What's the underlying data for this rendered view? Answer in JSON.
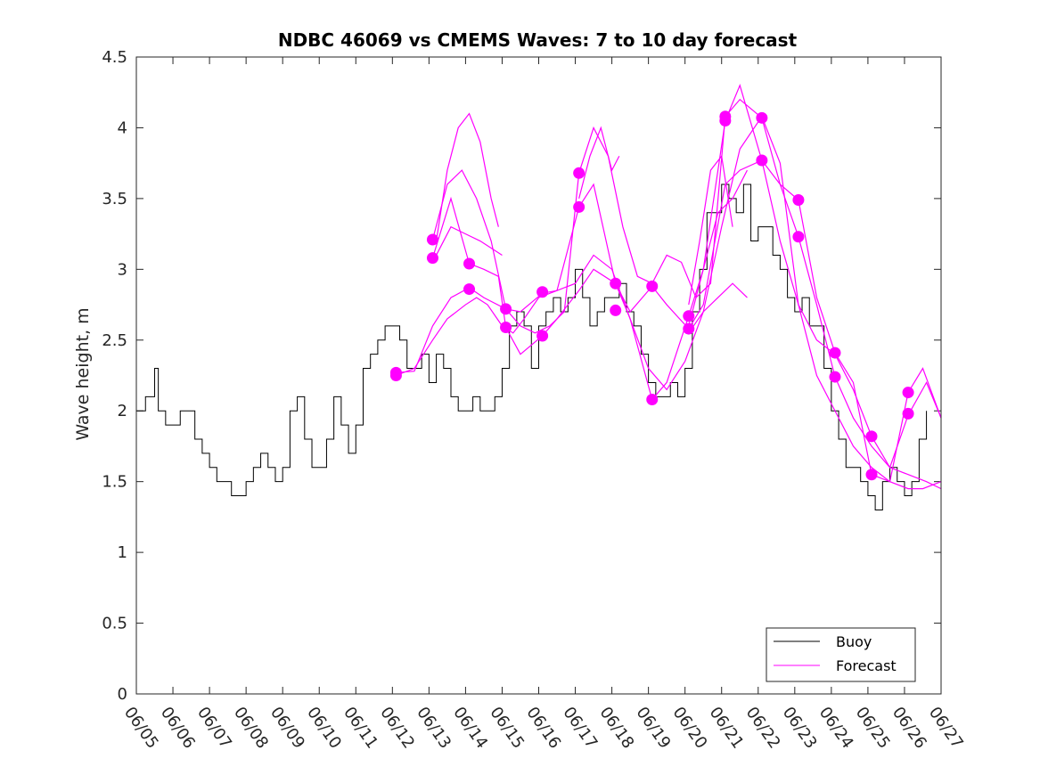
{
  "chart_data": {
    "type": "line",
    "title": "NDBC 46069 vs CMEMS Waves: 7 to 10 day forecast",
    "xlabel": "",
    "ylabel": "Wave height, m",
    "xlim": [
      0,
      22
    ],
    "ylim": [
      0,
      4.5
    ],
    "x_ticks": [
      {
        "x": 0,
        "label": "06/05"
      },
      {
        "x": 1,
        "label": "06/06"
      },
      {
        "x": 2,
        "label": "06/07"
      },
      {
        "x": 3,
        "label": "06/08"
      },
      {
        "x": 4,
        "label": "06/09"
      },
      {
        "x": 5,
        "label": "06/10"
      },
      {
        "x": 6,
        "label": "06/11"
      },
      {
        "x": 7,
        "label": "06/12"
      },
      {
        "x": 8,
        "label": "06/13"
      },
      {
        "x": 9,
        "label": "06/14"
      },
      {
        "x": 10,
        "label": "06/15"
      },
      {
        "x": 11,
        "label": "06/16"
      },
      {
        "x": 12,
        "label": "06/17"
      },
      {
        "x": 13,
        "label": "06/18"
      },
      {
        "x": 14,
        "label": "06/19"
      },
      {
        "x": 15,
        "label": "06/20"
      },
      {
        "x": 16,
        "label": "06/21"
      },
      {
        "x": 17,
        "label": "06/22"
      },
      {
        "x": 18,
        "label": "06/23"
      },
      {
        "x": 19,
        "label": "06/24"
      },
      {
        "x": 20,
        "label": "06/25"
      },
      {
        "x": 21,
        "label": "06/26"
      },
      {
        "x": 22,
        "label": "06/27"
      }
    ],
    "y_ticks": [
      {
        "y": 0,
        "label": "0"
      },
      {
        "y": 0.5,
        "label": "0.5"
      },
      {
        "y": 1,
        "label": "1"
      },
      {
        "y": 1.5,
        "label": "1.5"
      },
      {
        "y": 2,
        "label": "2"
      },
      {
        "y": 2.5,
        "label": "2.5"
      },
      {
        "y": 3,
        "label": "3"
      },
      {
        "y": 3.5,
        "label": "3.5"
      },
      {
        "y": 4,
        "label": "4"
      },
      {
        "y": 4.5,
        "label": "4.5"
      }
    ],
    "grid": false,
    "legend_position": "bottom-right",
    "colors": {
      "buoy": "#000000",
      "forecast": "#ff00ff"
    },
    "series": [
      {
        "name": "Buoy",
        "color": "#000000",
        "x": [
          0,
          0.25,
          0.5,
          0.6,
          0.8,
          1.0,
          1.2,
          1.4,
          1.6,
          1.8,
          2.0,
          2.2,
          2.4,
          2.6,
          2.8,
          3.0,
          3.2,
          3.4,
          3.6,
          3.8,
          4.0,
          4.2,
          4.4,
          4.6,
          4.8,
          5.0,
          5.2,
          5.4,
          5.6,
          5.8,
          6.0,
          6.2,
          6.4,
          6.6,
          6.8,
          7.0,
          7.2,
          7.4,
          7.6,
          7.8,
          8.0,
          8.2,
          8.4,
          8.6,
          8.8,
          9.0,
          9.2,
          9.4,
          9.6,
          9.8,
          10.0,
          10.2,
          10.4,
          10.6,
          10.8,
          11.0,
          11.2,
          11.4,
          11.6,
          11.8,
          12.0,
          12.2,
          12.4,
          12.6,
          12.8,
          13.0,
          13.2,
          13.4,
          13.6,
          13.8,
          14.0,
          14.2,
          14.4,
          14.6,
          14.8,
          15.0,
          15.2,
          15.4,
          15.6,
          15.8,
          16.0,
          16.2,
          16.4,
          16.6,
          16.8,
          17.0,
          17.2,
          17.4,
          17.6,
          17.8,
          18.0,
          18.2,
          18.4,
          18.6,
          18.8,
          19.0,
          19.2,
          19.4,
          19.6,
          19.8,
          20.0,
          20.2,
          20.4,
          20.6,
          20.8,
          21.0,
          21.2,
          21.4,
          21.6
        ],
        "values": [
          2.0,
          2.1,
          2.3,
          2.0,
          1.9,
          1.9,
          2.0,
          2.0,
          1.8,
          1.7,
          1.6,
          1.5,
          1.5,
          1.4,
          1.4,
          1.5,
          1.6,
          1.7,
          1.6,
          1.5,
          1.6,
          2.0,
          2.1,
          1.8,
          1.6,
          1.6,
          1.8,
          2.1,
          1.9,
          1.7,
          1.9,
          2.3,
          2.4,
          2.5,
          2.6,
          2.6,
          2.5,
          2.3,
          2.3,
          2.4,
          2.2,
          2.4,
          2.3,
          2.1,
          2.0,
          2.0,
          2.1,
          2.0,
          2.0,
          2.1,
          2.3,
          2.6,
          2.7,
          2.6,
          2.3,
          2.6,
          2.7,
          2.8,
          2.7,
          2.8,
          3.0,
          2.8,
          2.6,
          2.7,
          2.8,
          2.8,
          2.9,
          2.7,
          2.6,
          2.4,
          2.2,
          2.1,
          2.1,
          2.2,
          2.1,
          2.3,
          2.7,
          3.0,
          3.4,
          3.4,
          3.6,
          3.5,
          3.4,
          3.6,
          3.2,
          3.3,
          3.3,
          3.1,
          3.0,
          2.8,
          2.7,
          2.8,
          2.6,
          2.6,
          2.3,
          2.0,
          1.8,
          1.6,
          1.6,
          1.5,
          1.4,
          1.3,
          1.5,
          1.6,
          1.5,
          1.4,
          1.5,
          1.8,
          2.0
        ]
      },
      {
        "name": "Forecast",
        "color": "#ff00ff",
        "runs": [
          {
            "x": [
              7.1,
              7.6,
              8.1,
              8.5,
              9.0,
              9.3,
              9.6,
              10.0,
              10.3,
              10.6,
              11.0,
              11.5,
              12.0,
              12.5,
              13.0,
              13.5,
              14.0,
              14.5,
              15.0,
              15.5,
              16.0,
              16.5,
              17.1,
              17.6,
              18.1,
              18.6,
              19.1,
              19.6,
              20.1,
              20.6,
              21.1,
              21.5,
              22.0
            ],
            "values": [
              2.25,
              2.3,
              2.5,
              2.65,
              2.75,
              2.8,
              2.75,
              2.6,
              2.55,
              2.65,
              2.8,
              2.85,
              2.9,
              3.1,
              3.0,
              2.65,
              2.3,
              2.15,
              2.35,
              2.7,
              3.3,
              3.85,
              4.08,
              3.75,
              2.75,
              2.25,
              2.0,
              1.75,
              1.6,
              1.5,
              1.45,
              1.45,
              1.5
            ]
          },
          {
            "x": [
              7.1,
              7.6,
              8.1,
              8.6,
              9.1,
              9.5,
              10.1,
              10.5,
              11.1,
              11.5,
              12.1,
              12.5,
              13.1,
              13.5,
              14.1,
              14.5,
              15.1,
              15.5,
              16.1,
              16.5,
              17.1,
              17.6,
              18.1,
              18.6,
              19.1,
              19.6,
              20.1,
              20.6,
              21.1,
              21.6,
              22.0
            ],
            "values": [
              2.27,
              2.28,
              2.6,
              2.8,
              2.87,
              2.8,
              2.72,
              2.7,
              2.83,
              2.85,
              3.44,
              3.6,
              2.9,
              2.65,
              2.08,
              2.2,
              2.67,
              3.0,
              4.05,
              4.3,
              3.77,
              3.2,
              2.75,
              2.5,
              2.4,
              2.15,
              1.82,
              1.6,
              1.55,
              1.5,
              1.45
            ]
          },
          {
            "x": [
              8.1,
              8.5,
              8.9,
              9.3,
              9.7,
              10.1,
              10.5,
              10.9,
              11.3,
              11.7,
              12.1,
              12.5,
              12.9,
              13.3,
              13.7,
              14.1,
              14.5,
              14.9,
              15.3,
              15.7,
              16.1,
              16.5,
              17.1,
              17.6,
              18.1,
              18.6,
              19.1,
              19.6,
              20.1,
              20.6,
              21.1,
              21.6,
              22.0
            ],
            "values": [
              3.21,
              3.6,
              3.7,
              3.5,
              3.2,
              2.72,
              2.6,
              2.55,
              2.6,
              2.7,
              3.68,
              4.0,
              3.8,
              3.3,
              2.95,
              2.9,
              3.1,
              3.05,
              2.8,
              2.9,
              4.08,
              4.2,
              4.07,
              3.6,
              3.23,
              2.75,
              2.24,
              1.95,
              1.75,
              1.6,
              1.97,
              2.2,
              1.95
            ]
          },
          {
            "x": [
              8.1,
              8.6,
              9.1,
              9.5,
              9.9,
              10.1,
              10.5,
              11.1,
              11.5,
              12.1,
              12.5,
              13.1,
              13.5,
              14.1,
              14.5,
              15.1,
              15.5,
              16.1,
              16.5,
              17.1,
              17.6,
              18.1,
              18.6,
              19.1,
              19.6,
              20.1,
              20.6,
              21.1,
              21.5,
              22.0
            ],
            "values": [
              3.08,
              3.5,
              3.04,
              3.0,
              2.95,
              2.59,
              2.4,
              2.53,
              2.65,
              2.85,
              3.0,
              2.9,
              2.7,
              2.88,
              2.75,
              2.58,
              2.75,
              3.6,
              3.7,
              3.77,
              3.6,
              3.49,
              2.8,
              2.41,
              2.2,
              1.55,
              1.5,
              2.13,
              2.3,
              1.95
            ]
          },
          {
            "x": [
              8.2,
              8.5,
              8.8,
              9.1,
              9.4,
              9.7,
              9.9
            ],
            "values": [
              3.2,
              3.7,
              4.0,
              4.1,
              3.9,
              3.5,
              3.3
            ]
          },
          {
            "x": [
              8.2,
              8.6,
              9.0,
              9.4,
              9.7,
              10.0
            ],
            "values": [
              3.1,
              3.3,
              3.25,
              3.2,
              3.15,
              3.1
            ]
          },
          {
            "x": [
              12.1,
              12.4,
              12.7,
              13.0,
              13.2
            ],
            "values": [
              3.5,
              3.8,
              4.0,
              3.7,
              3.8
            ]
          },
          {
            "x": [
              15.1,
              15.4,
              15.7,
              16.0,
              16.3
            ],
            "values": [
              2.75,
              3.2,
              3.7,
              3.8,
              3.3
            ]
          },
          {
            "x": [
              15.1,
              15.5,
              15.9,
              16.3,
              16.7
            ],
            "values": [
              2.6,
              3.0,
              3.4,
              3.5,
              3.7
            ]
          },
          {
            "x": [
              15.1,
              15.5,
              15.9,
              16.3,
              16.7
            ],
            "values": [
              2.55,
              2.7,
              2.8,
              2.9,
              2.8
            ]
          }
        ],
        "markers": [
          {
            "x": 7.1,
            "y": 2.25
          },
          {
            "x": 7.1,
            "y": 2.27
          },
          {
            "x": 8.1,
            "y": 3.21
          },
          {
            "x": 8.1,
            "y": 3.08
          },
          {
            "x": 9.1,
            "y": 3.04
          },
          {
            "x": 9.1,
            "y": 2.86
          },
          {
            "x": 10.1,
            "y": 2.72
          },
          {
            "x": 10.1,
            "y": 2.59
          },
          {
            "x": 11.1,
            "y": 2.84
          },
          {
            "x": 11.1,
            "y": 2.53
          },
          {
            "x": 12.1,
            "y": 3.68
          },
          {
            "x": 12.1,
            "y": 3.44
          },
          {
            "x": 13.1,
            "y": 2.9
          },
          {
            "x": 13.1,
            "y": 2.71
          },
          {
            "x": 14.1,
            "y": 2.88
          },
          {
            "x": 14.1,
            "y": 2.08
          },
          {
            "x": 15.1,
            "y": 2.67
          },
          {
            "x": 15.1,
            "y": 2.58
          },
          {
            "x": 16.1,
            "y": 4.08
          },
          {
            "x": 16.1,
            "y": 4.05
          },
          {
            "x": 17.1,
            "y": 4.07
          },
          {
            "x": 17.1,
            "y": 3.77
          },
          {
            "x": 18.1,
            "y": 3.49
          },
          {
            "x": 18.1,
            "y": 3.23
          },
          {
            "x": 19.1,
            "y": 2.41
          },
          {
            "x": 19.1,
            "y": 2.24
          },
          {
            "x": 20.1,
            "y": 1.82
          },
          {
            "x": 20.1,
            "y": 1.55
          },
          {
            "x": 21.1,
            "y": 2.13
          },
          {
            "x": 21.1,
            "y": 1.98
          }
        ]
      }
    ]
  }
}
